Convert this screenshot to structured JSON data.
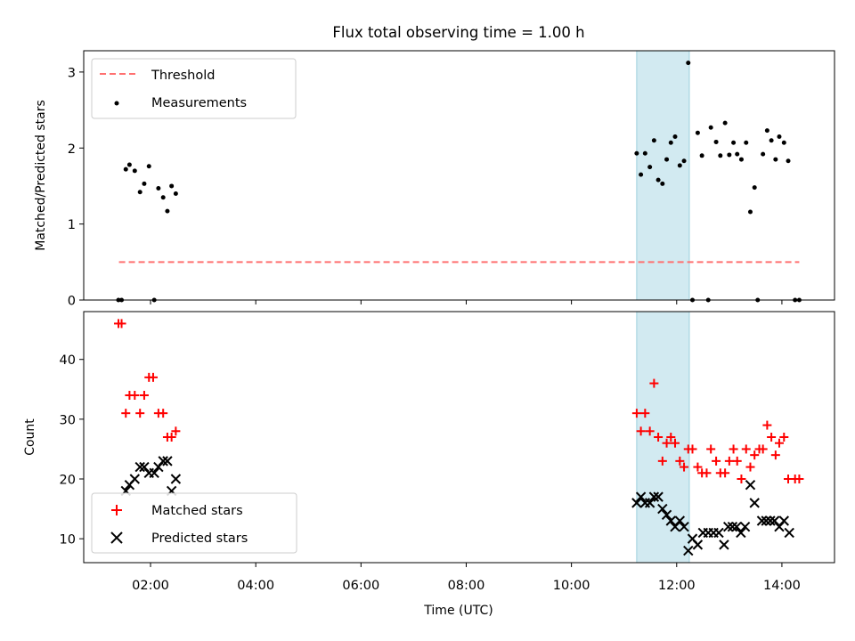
{
  "figure": {
    "title": "Flux total observing time = 1.00 h",
    "xlabel": "Time (UTC)",
    "xticks": [
      {
        "h": 2,
        "label": "02:00"
      },
      {
        "h": 4,
        "label": "04:00"
      },
      {
        "h": 6,
        "label": "06:00"
      },
      {
        "h": 8,
        "label": "08:00"
      },
      {
        "h": 10,
        "label": "10:00"
      },
      {
        "h": 12,
        "label": "12:00"
      },
      {
        "h": 14,
        "label": "14:00"
      }
    ],
    "xlim": [
      0.73,
      15.0
    ]
  },
  "highlight": {
    "x_start": 11.24,
    "x_end": 12.24,
    "color": "#add8e6"
  },
  "chart_data": [
    {
      "type": "scatter",
      "ylabel": "Matched/Predicted stars",
      "ylim": [
        0,
        3.28
      ],
      "yticks": [
        0,
        1,
        2,
        3
      ],
      "legend_position": "upper-left",
      "threshold": {
        "name": "Threshold",
        "value": 0.5,
        "x": [
          1.4,
          14.33
        ],
        "color": "#ff7070"
      },
      "series": [
        {
          "name": "Measurements",
          "color": "#000000",
          "points": [
            [
              1.39,
              0
            ],
            [
              1.45,
              0
            ],
            [
              1.53,
              1.72
            ],
            [
              1.6,
              1.78
            ],
            [
              1.7,
              1.7
            ],
            [
              1.8,
              1.42
            ],
            [
              1.88,
              1.53
            ],
            [
              1.97,
              1.76
            ],
            [
              2.07,
              0
            ],
            [
              2.15,
              1.47
            ],
            [
              2.24,
              1.35
            ],
            [
              2.32,
              1.17
            ],
            [
              2.4,
              1.5
            ],
            [
              2.48,
              1.4
            ],
            [
              11.24,
              1.93
            ],
            [
              11.32,
              1.65
            ],
            [
              11.4,
              1.93
            ],
            [
              11.49,
              1.75
            ],
            [
              11.57,
              2.1
            ],
            [
              11.65,
              1.58
            ],
            [
              11.73,
              1.53
            ],
            [
              11.81,
              1.85
            ],
            [
              11.89,
              2.07
            ],
            [
              11.97,
              2.15
            ],
            [
              12.06,
              1.77
            ],
            [
              12.14,
              1.83
            ],
            [
              12.22,
              3.12
            ],
            [
              12.3,
              0
            ],
            [
              12.4,
              2.2
            ],
            [
              12.48,
              1.9
            ],
            [
              12.6,
              0
            ],
            [
              12.65,
              2.27
            ],
            [
              12.75,
              2.08
            ],
            [
              12.83,
              1.9
            ],
            [
              12.92,
              2.33
            ],
            [
              13.0,
              1.91
            ],
            [
              13.08,
              2.07
            ],
            [
              13.15,
              1.92
            ],
            [
              13.23,
              1.85
            ],
            [
              13.32,
              2.07
            ],
            [
              13.4,
              1.16
            ],
            [
              13.48,
              1.48
            ],
            [
              13.54,
              0
            ],
            [
              13.64,
              1.92
            ],
            [
              13.72,
              2.23
            ],
            [
              13.8,
              2.1
            ],
            [
              13.88,
              1.85
            ],
            [
              13.95,
              2.15
            ],
            [
              14.04,
              2.07
            ],
            [
              14.12,
              1.83
            ],
            [
              14.25,
              0
            ],
            [
              14.33,
              0
            ]
          ]
        }
      ]
    },
    {
      "type": "scatter",
      "ylabel": "Count",
      "ylim": [
        6,
        48
      ],
      "yticks": [
        10,
        20,
        30,
        40
      ],
      "legend_position": "lower-left",
      "series": [
        {
          "name": "Matched stars",
          "marker": "plus",
          "color": "#ff0000",
          "points": [
            [
              1.39,
              46
            ],
            [
              1.45,
              46
            ],
            [
              1.53,
              31
            ],
            [
              1.6,
              34
            ],
            [
              1.7,
              34
            ],
            [
              1.8,
              31
            ],
            [
              1.88,
              34
            ],
            [
              1.97,
              37
            ],
            [
              2.05,
              37
            ],
            [
              2.15,
              31
            ],
            [
              2.24,
              31
            ],
            [
              2.32,
              27
            ],
            [
              2.4,
              27
            ],
            [
              2.48,
              28
            ],
            [
              11.24,
              31
            ],
            [
              11.32,
              28
            ],
            [
              11.4,
              31
            ],
            [
              11.49,
              28
            ],
            [
              11.57,
              36
            ],
            [
              11.65,
              27
            ],
            [
              11.73,
              23
            ],
            [
              11.81,
              26
            ],
            [
              11.89,
              27
            ],
            [
              11.97,
              26
            ],
            [
              12.06,
              23
            ],
            [
              12.14,
              22
            ],
            [
              12.22,
              25
            ],
            [
              12.3,
              25
            ],
            [
              12.4,
              22
            ],
            [
              12.48,
              21
            ],
            [
              12.57,
              21
            ],
            [
              12.65,
              25
            ],
            [
              12.75,
              23
            ],
            [
              12.83,
              21
            ],
            [
              12.92,
              21
            ],
            [
              13.0,
              23
            ],
            [
              13.08,
              25
            ],
            [
              13.15,
              23
            ],
            [
              13.23,
              20
            ],
            [
              13.32,
              25
            ],
            [
              13.4,
              22
            ],
            [
              13.48,
              24
            ],
            [
              13.57,
              25
            ],
            [
              13.64,
              25
            ],
            [
              13.72,
              29
            ],
            [
              13.8,
              27
            ],
            [
              13.88,
              24
            ],
            [
              13.95,
              26
            ],
            [
              14.04,
              27
            ],
            [
              14.12,
              20
            ],
            [
              14.25,
              20
            ],
            [
              14.33,
              20
            ]
          ]
        },
        {
          "name": "Predicted stars",
          "marker": "x",
          "color": "#000000",
          "points": [
            [
              1.53,
              18
            ],
            [
              1.6,
              19
            ],
            [
              1.7,
              20
            ],
            [
              1.8,
              22
            ],
            [
              1.88,
              22
            ],
            [
              1.97,
              21
            ],
            [
              2.07,
              21
            ],
            [
              2.15,
              22
            ],
            [
              2.24,
              23
            ],
            [
              2.32,
              23
            ],
            [
              2.4,
              18
            ],
            [
              2.48,
              20
            ],
            [
              11.24,
              16
            ],
            [
              11.32,
              17
            ],
            [
              11.4,
              16
            ],
            [
              11.49,
              16
            ],
            [
              11.57,
              17
            ],
            [
              11.65,
              17
            ],
            [
              11.73,
              15
            ],
            [
              11.81,
              14
            ],
            [
              11.89,
              13
            ],
            [
              11.97,
              12
            ],
            [
              12.06,
              13
            ],
            [
              12.14,
              12
            ],
            [
              12.22,
              8
            ],
            [
              12.3,
              10
            ],
            [
              12.4,
              9
            ],
            [
              12.5,
              11
            ],
            [
              12.6,
              11
            ],
            [
              12.7,
              11
            ],
            [
              12.8,
              11
            ],
            [
              12.9,
              9
            ],
            [
              12.98,
              12
            ],
            [
              13.06,
              12
            ],
            [
              13.14,
              12
            ],
            [
              13.22,
              11
            ],
            [
              13.3,
              12
            ],
            [
              13.4,
              19
            ],
            [
              13.48,
              16
            ],
            [
              13.62,
              13
            ],
            [
              13.7,
              13
            ],
            [
              13.78,
              13
            ],
            [
              13.86,
              13
            ],
            [
              13.95,
              12
            ],
            [
              14.04,
              13
            ],
            [
              14.14,
              11
            ]
          ]
        }
      ]
    }
  ]
}
